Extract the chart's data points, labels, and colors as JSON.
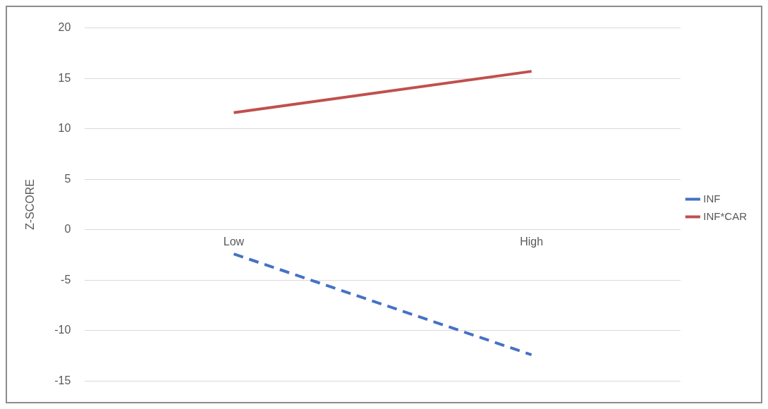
{
  "chart_data": {
    "type": "line",
    "ylabel": "Z-SCORE",
    "categories": [
      "Low",
      "High"
    ],
    "series": [
      {
        "name": "INF",
        "color": "#4472c4",
        "values": [
          -2.4,
          -12.4
        ],
        "line_style": "dashed"
      },
      {
        "name": "INF*CAR",
        "color": "#c0504d",
        "values": [
          11.6,
          15.7
        ],
        "line_style": "solid"
      }
    ],
    "ylim": [
      -15,
      20
    ],
    "yticks": [
      -15,
      -10,
      -5,
      0,
      5,
      10,
      15,
      20
    ],
    "grid": "y",
    "legend": "right"
  }
}
